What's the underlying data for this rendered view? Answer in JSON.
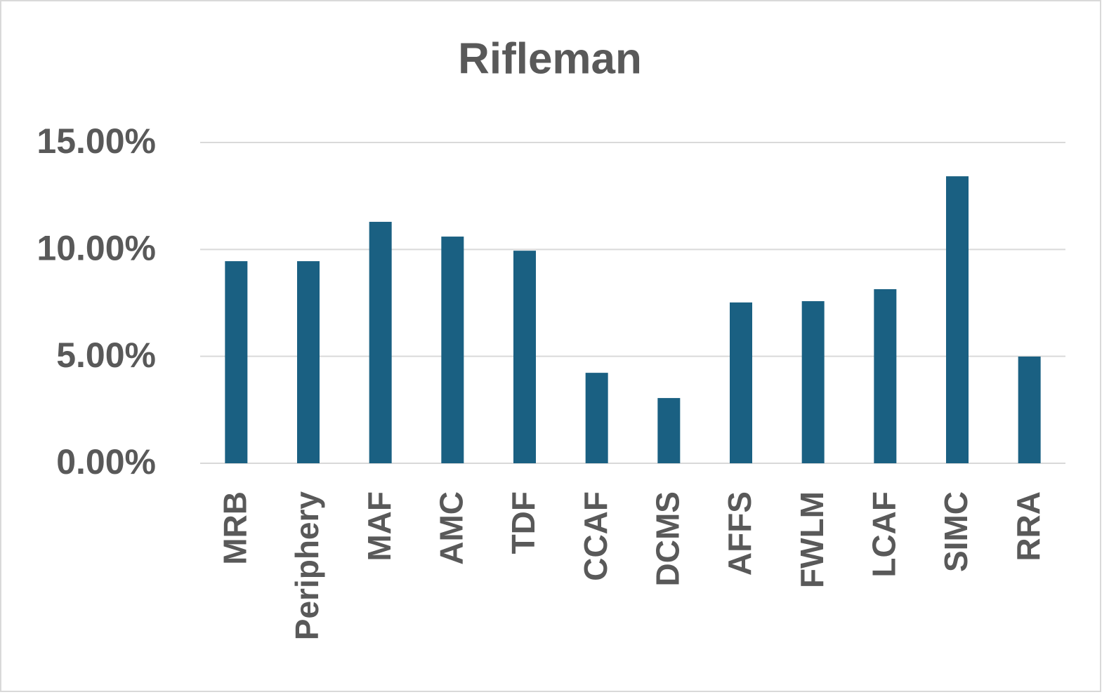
{
  "chart_data": {
    "type": "bar",
    "title": "Rifleman",
    "categories": [
      "MRB",
      "Periphery",
      "MAF",
      "AMC",
      "TDF",
      "CCAF",
      "DCMS",
      "AFFS",
      "FWLM",
      "LCAF",
      "SIMC",
      "RRA"
    ],
    "values": [
      9.45,
      9.45,
      11.29,
      10.6,
      9.94,
      4.23,
      3.05,
      7.52,
      7.58,
      8.14,
      13.42,
      4.99
    ],
    "color": "#1a6082",
    "ylim": [
      0,
      15
    ],
    "yticks": [
      {
        "value": 0,
        "label": "0.00%"
      },
      {
        "value": 5,
        "label": "5.00%"
      },
      {
        "value": 10,
        "label": "10.00%"
      },
      {
        "value": 15,
        "label": "15.00%"
      }
    ],
    "grid": true
  }
}
